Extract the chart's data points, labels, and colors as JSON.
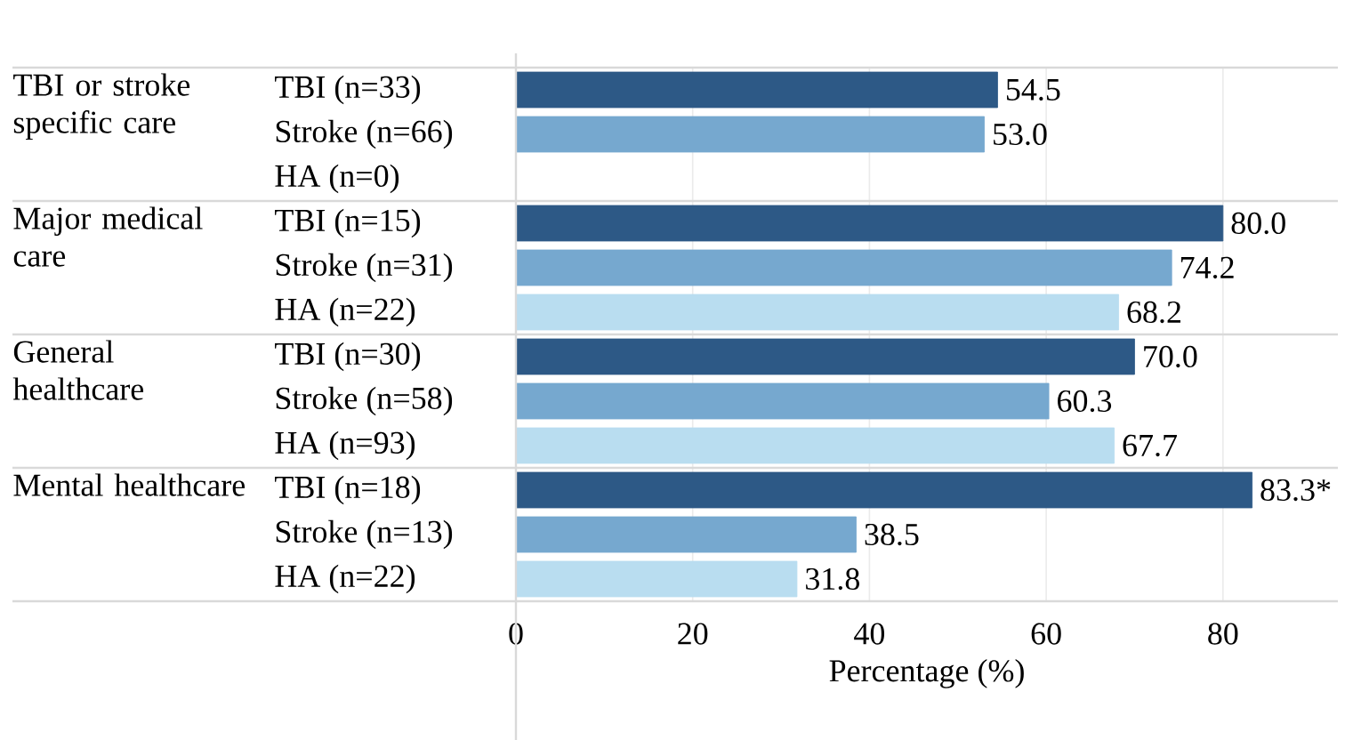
{
  "chart_data": {
    "type": "bar",
    "orientation": "horizontal",
    "xlabel": "Percentage (%)",
    "categories": [
      "TBI (n=33)",
      "Stroke (n=66)",
      "HA (n=0)",
      "TBI (n=15)",
      "Stroke (n=31)",
      "HA (n=22)",
      "TBI (n=30)",
      "Stroke (n=58)",
      "HA (n=93)",
      "TBI (n=18)",
      "Stroke (n=13)",
      "HA (n=22)"
    ],
    "values": [
      54.5,
      53.0,
      null,
      80.0,
      74.2,
      68.2,
      70.0,
      60.3,
      67.7,
      83.3,
      38.5,
      31.8
    ],
    "value_labels": [
      "54.5",
      "53.0",
      null,
      "80.0",
      "74.2",
      "68.2",
      "70.0",
      "60.3",
      "67.7",
      "83.3*",
      "38.5",
      "31.8"
    ],
    "colors": [
      "#2d5986",
      "#76a8cf",
      "#b9ddf0",
      "#2d5986",
      "#76a8cf",
      "#b9ddf0",
      "#2d5986",
      "#76a8cf",
      "#b9ddf0",
      "#2d5986",
      "#76a8cf",
      "#b9ddf0"
    ],
    "annotations": [
      "TBI or stroke specific care",
      "Major medical care",
      "General healthcare",
      "Mental healthcare"
    ],
    "xlim": [
      0,
      93
    ],
    "xticks": [
      0,
      20,
      40,
      60,
      80
    ],
    "grid": "x"
  }
}
